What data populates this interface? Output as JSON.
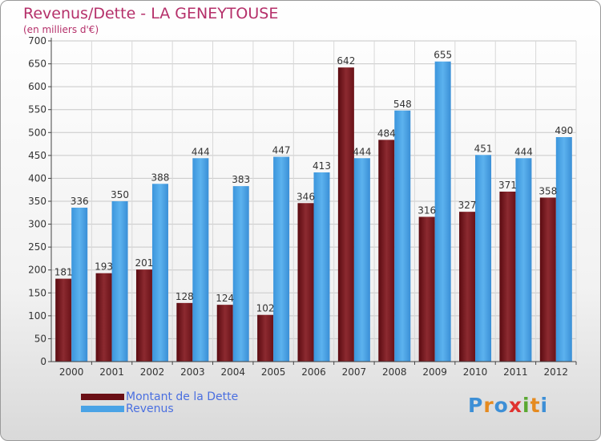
{
  "title": "Revenus/Dette - LA GENEYTOUSE",
  "subtitle": "(en milliers d'€)",
  "colors": {
    "dette": "#7a1a1f",
    "revenus": "#4aa3e6",
    "title": "#b5306a",
    "legend_text": "#4a6fe0"
  },
  "legend": {
    "dette": "Montant de la Dette",
    "revenus": "Revenus"
  },
  "logo": {
    "text": "Proxiti",
    "letters": [
      "P",
      "r",
      "o",
      "x",
      "i",
      "t",
      "i"
    ]
  },
  "chart_data": {
    "type": "bar",
    "title": "Revenus/Dette - LA GENEYTOUSE",
    "ylabel": "(en milliers d'€)",
    "xlabel": "",
    "categories": [
      "2000",
      "2001",
      "2002",
      "2003",
      "2004",
      "2005",
      "2006",
      "2007",
      "2008",
      "2009",
      "2010",
      "2011",
      "2012"
    ],
    "series": [
      {
        "name": "Montant de la Dette",
        "values": [
          181,
          193,
          201,
          128,
          124,
          102,
          346,
          642,
          484,
          316,
          327,
          371,
          358
        ]
      },
      {
        "name": "Revenus",
        "values": [
          336,
          350,
          388,
          444,
          383,
          447,
          413,
          444,
          548,
          655,
          451,
          444,
          490
        ]
      }
    ],
    "ylim": [
      0,
      700
    ],
    "yticks": [
      0,
      50,
      100,
      150,
      200,
      250,
      300,
      350,
      400,
      450,
      500,
      550,
      600,
      650,
      700
    ],
    "grid": true,
    "legend_position": "bottom-left"
  }
}
